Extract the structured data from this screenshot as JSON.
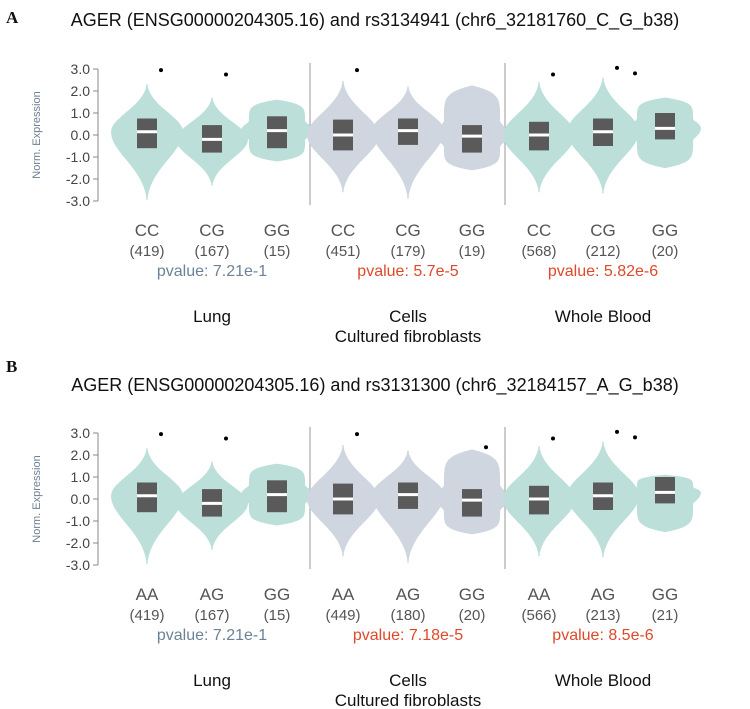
{
  "panels": [
    {
      "letter": "A",
      "title": "AGER (ENSG00000204305.16) and rs3134941 (chr6_32181760_C_G_b38)",
      "chart_data": {
        "type": "violin",
        "ylabel": "Norm. Expression",
        "ylim": [
          -3.0,
          3.0
        ],
        "yticks": [
          "3.0",
          "2.0",
          "1.0",
          "0.0",
          "-1.0",
          "-2.0",
          "-3.0"
        ],
        "colors": {
          "lung": "#bcdfda",
          "cells": "#cfd6e0",
          "blood": "#bcdfda",
          "box": "#5a5a5a",
          "pvalue_ns": "#6c8296",
          "pvalue_sig": "#e0482a"
        },
        "groups": [
          {
            "tissue": "Lung",
            "tissue_sub": "",
            "pvalue": "pvalue: 7.21e-1",
            "significant": false,
            "color": "#bcdfda",
            "violins": [
              {
                "genotype": "CC",
                "count": "(419)",
                "min": -2.95,
                "max": 2.3,
                "q1": -0.6,
                "median": 0.15,
                "q3": 0.75,
                "outliers": [
                  2.95
                ]
              },
              {
                "genotype": "CG",
                "count": "(167)",
                "min": -2.3,
                "max": 1.7,
                "q1": -0.8,
                "median": -0.2,
                "q3": 0.45,
                "outliers": [
                  2.75
                ]
              },
              {
                "genotype": "GG",
                "count": "(15)",
                "min": -1.2,
                "max": 1.6,
                "q1": -0.6,
                "median": 0.2,
                "q3": 0.85,
                "outliers": []
              }
            ]
          },
          {
            "tissue": "Cells",
            "tissue_sub": "Cultured fibroblasts",
            "pvalue": "pvalue: 5.7e-5",
            "significant": true,
            "color": "#cfd6e0",
            "violins": [
              {
                "genotype": "CC",
                "count": "(451)",
                "min": -2.6,
                "max": 2.45,
                "q1": -0.7,
                "median": 0.0,
                "q3": 0.7,
                "outliers": [
                  2.95
                ]
              },
              {
                "genotype": "CG",
                "count": "(179)",
                "min": -2.9,
                "max": 2.2,
                "q1": -0.45,
                "median": 0.2,
                "q3": 0.75,
                "outliers": []
              },
              {
                "genotype": "GG",
                "count": "(19)",
                "min": -1.6,
                "max": 2.25,
                "q1": -0.8,
                "median": -0.05,
                "q3": 0.45,
                "outliers": []
              }
            ]
          },
          {
            "tissue": "Whole Blood",
            "tissue_sub": "",
            "pvalue": "pvalue: 5.82e-6",
            "significant": true,
            "color": "#bcdfda",
            "violins": [
              {
                "genotype": "CC",
                "count": "(568)",
                "min": -2.6,
                "max": 2.4,
                "q1": -0.7,
                "median": 0.0,
                "q3": 0.6,
                "outliers": [
                  2.75
                ]
              },
              {
                "genotype": "CG",
                "count": "(212)",
                "min": -2.65,
                "max": 2.6,
                "q1": -0.5,
                "median": 0.15,
                "q3": 0.75,
                "outliers": [
                  3.05,
                  2.8
                ]
              },
              {
                "genotype": "GG",
                "count": "(20)",
                "min": -1.5,
                "max": 1.7,
                "q1": -0.2,
                "median": 0.3,
                "q3": 1.0,
                "outliers": []
              }
            ]
          }
        ]
      }
    },
    {
      "letter": "B",
      "title": "AGER (ENSG00000204305.16) and rs3131300 (chr6_32184157_A_G_b38)",
      "chart_data": {
        "type": "violin",
        "ylabel": "Norm. Expression",
        "ylim": [
          -3.0,
          3.0
        ],
        "yticks": [
          "3.0",
          "2.0",
          "1.0",
          "0.0",
          "-1.0",
          "-2.0",
          "-3.0"
        ],
        "colors": {
          "lung": "#bcdfda",
          "cells": "#cfd6e0",
          "blood": "#bcdfda",
          "box": "#5a5a5a",
          "pvalue_ns": "#6c8296",
          "pvalue_sig": "#e0482a"
        },
        "groups": [
          {
            "tissue": "Lung",
            "tissue_sub": "",
            "pvalue": "pvalue: 7.21e-1",
            "significant": false,
            "color": "#bcdfda",
            "violins": [
              {
                "genotype": "AA",
                "count": "(419)",
                "min": -2.95,
                "max": 2.3,
                "q1": -0.6,
                "median": 0.15,
                "q3": 0.75,
                "outliers": [
                  2.95
                ]
              },
              {
                "genotype": "AG",
                "count": "(167)",
                "min": -2.3,
                "max": 1.7,
                "q1": -0.8,
                "median": -0.2,
                "q3": 0.45,
                "outliers": [
                  2.75
                ]
              },
              {
                "genotype": "GG",
                "count": "(15)",
                "min": -1.2,
                "max": 1.6,
                "q1": -0.6,
                "median": 0.2,
                "q3": 0.85,
                "outliers": []
              }
            ]
          },
          {
            "tissue": "Cells",
            "tissue_sub": "Cultured fibroblasts",
            "pvalue": "pvalue: 7.18e-5",
            "significant": true,
            "color": "#cfd6e0",
            "violins": [
              {
                "genotype": "AA",
                "count": "(449)",
                "min": -2.6,
                "max": 2.45,
                "q1": -0.7,
                "median": 0.0,
                "q3": 0.7,
                "outliers": [
                  2.95
                ]
              },
              {
                "genotype": "AG",
                "count": "(180)",
                "min": -2.9,
                "max": 2.2,
                "q1": -0.45,
                "median": 0.2,
                "q3": 0.75,
                "outliers": []
              },
              {
                "genotype": "GG",
                "count": "(20)",
                "min": -1.6,
                "max": 2.25,
                "q1": -0.8,
                "median": -0.05,
                "q3": 0.45,
                "outliers": [
                  2.35
                ]
              }
            ]
          },
          {
            "tissue": "Whole Blood",
            "tissue_sub": "",
            "pvalue": "pvalue: 8.5e-6",
            "significant": true,
            "color": "#bcdfda",
            "violins": [
              {
                "genotype": "AA",
                "count": "(566)",
                "min": -2.6,
                "max": 2.4,
                "q1": -0.7,
                "median": 0.0,
                "q3": 0.6,
                "outliers": [
                  2.75
                ]
              },
              {
                "genotype": "AG",
                "count": "(213)",
                "min": -2.65,
                "max": 2.6,
                "q1": -0.5,
                "median": 0.15,
                "q3": 0.75,
                "outliers": [
                  3.05,
                  2.8
                ]
              },
              {
                "genotype": "GG",
                "count": "(21)",
                "min": -1.5,
                "max": 1.1,
                "q1": -0.2,
                "median": 0.3,
                "q3": 1.0,
                "outliers": []
              }
            ]
          }
        ]
      }
    }
  ]
}
